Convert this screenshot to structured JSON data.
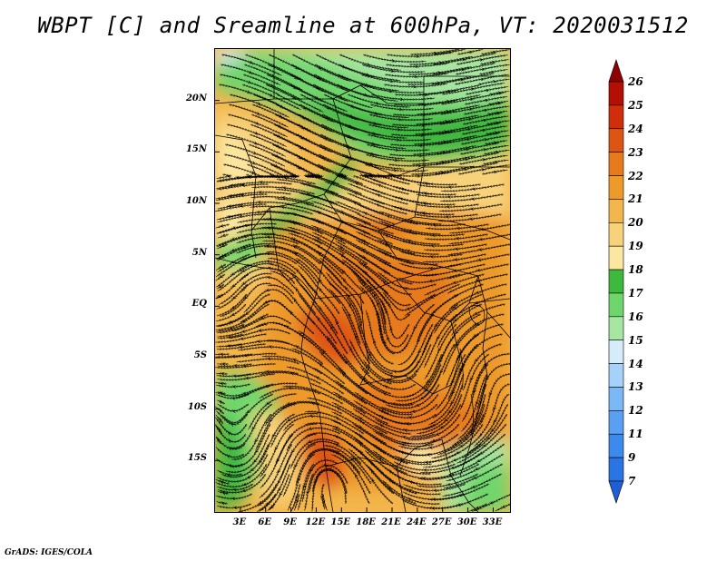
{
  "title": "WBPT [C] and Sreamline at 600hPa, VT: 2020031512",
  "footer": "GrADS: IGES/COLA",
  "map": {
    "lat_labels": [
      "20N",
      "15N",
      "10N",
      "5N",
      "EQ",
      "5S",
      "10S",
      "15S"
    ],
    "lat_values": [
      20,
      15,
      10,
      5,
      0,
      -5,
      -10,
      -15
    ],
    "lon_labels": [
      "3E",
      "6E",
      "9E",
      "12E",
      "15E",
      "18E",
      "21E",
      "24E",
      "27E",
      "30E",
      "33E"
    ],
    "lon_values": [
      3,
      6,
      9,
      12,
      15,
      18,
      21,
      24,
      27,
      30,
      33
    ],
    "lat_range": [
      -20,
      25
    ],
    "lon_range": [
      0,
      35
    ]
  },
  "colorbar": {
    "labels": [
      "7",
      "9",
      "11",
      "12",
      "13",
      "14",
      "15",
      "16",
      "17",
      "18",
      "19",
      "20",
      "21",
      "22",
      "23",
      "24",
      "25",
      "26"
    ],
    "colors": [
      "#1f5fd6",
      "#2b74e6",
      "#3c8aee",
      "#5aa0f2",
      "#7bb8f6",
      "#a6d1f9",
      "#d7ecfb",
      "#a6e6a0",
      "#6fd66c",
      "#3fb83f",
      "#fbe7a0",
      "#f8d27a",
      "#f2b64c",
      "#ed9a2a",
      "#e67a1c",
      "#dd5512",
      "#d02e0a",
      "#b40f04",
      "#8f0000"
    ]
  },
  "chart_data": {
    "type": "heatmap",
    "title": "WBPT [C] and Sreamline at 600hPa, VT: 2020031512",
    "variable": "Wet-bulb potential temperature [C] with streamlines",
    "level": "600hPa",
    "valid_time": "2020031512",
    "x_tick_labels": [
      "3E",
      "6E",
      "9E",
      "12E",
      "15E",
      "18E",
      "21E",
      "24E",
      "27E",
      "30E",
      "33E"
    ],
    "y_tick_labels": [
      "20N",
      "15N",
      "10N",
      "5N",
      "EQ",
      "5S",
      "10S",
      "15S"
    ],
    "colorbar_levels": [
      7,
      9,
      11,
      12,
      13,
      14,
      15,
      16,
      17,
      18,
      19,
      20,
      21,
      22,
      23,
      24,
      25,
      26
    ]
  }
}
